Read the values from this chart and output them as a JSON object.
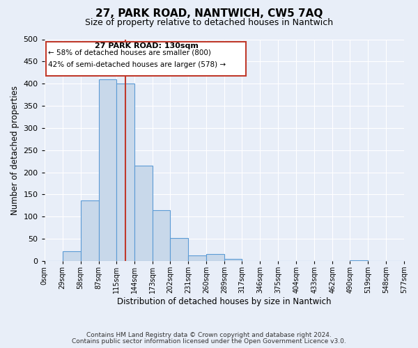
{
  "title": "27, PARK ROAD, NANTWICH, CW5 7AQ",
  "subtitle": "Size of property relative to detached houses in Nantwich",
  "xlabel": "Distribution of detached houses by size in Nantwich",
  "ylabel": "Number of detached properties",
  "bar_edges": [
    0,
    29,
    58,
    87,
    115,
    144,
    173,
    202,
    231,
    260,
    289,
    317,
    346,
    375,
    404,
    433,
    462,
    490,
    519,
    548,
    577
  ],
  "bar_heights": [
    0,
    22,
    137,
    410,
    400,
    215,
    115,
    52,
    12,
    16,
    5,
    0,
    0,
    0,
    0,
    0,
    0,
    1,
    0,
    0
  ],
  "bar_color": "#c8d8ea",
  "bar_edge_color": "#5b9bd5",
  "highlight_value": 130,
  "highlight_color": "#c0392b",
  "annotation_title": "27 PARK ROAD: 130sqm",
  "annotation_line1": "← 58% of detached houses are smaller (800)",
  "annotation_line2": "42% of semi-detached houses are larger (578) →",
  "annotation_box_color": "#c0392b",
  "ylim": [
    0,
    500
  ],
  "yticks": [
    0,
    50,
    100,
    150,
    200,
    250,
    300,
    350,
    400,
    450,
    500
  ],
  "xtick_labels": [
    "0sqm",
    "29sqm",
    "58sqm",
    "87sqm",
    "115sqm",
    "144sqm",
    "173sqm",
    "202sqm",
    "231sqm",
    "260sqm",
    "289sqm",
    "317sqm",
    "346sqm",
    "375sqm",
    "404sqm",
    "433sqm",
    "462sqm",
    "490sqm",
    "519sqm",
    "548sqm",
    "577sqm"
  ],
  "footer_line1": "Contains HM Land Registry data © Crown copyright and database right 2024.",
  "footer_line2": "Contains public sector information licensed under the Open Government Licence v3.0.",
  "background_color": "#e8eef8",
  "plot_background": "#e8eef8",
  "grid_color": "#ffffff",
  "title_fontsize": 11,
  "subtitle_fontsize": 9,
  "axis_label_fontsize": 8,
  "tick_fontsize": 7,
  "footer_fontsize": 6.5
}
